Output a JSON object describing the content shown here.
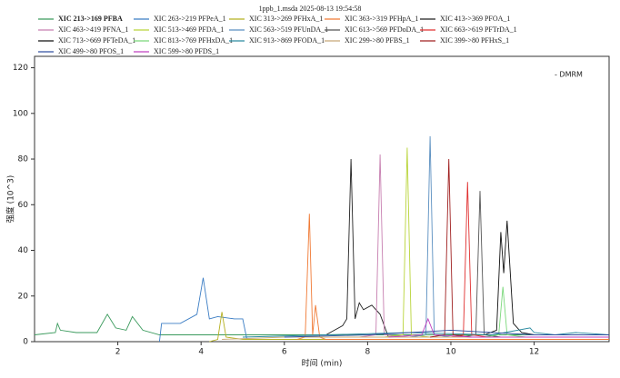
{
  "chart_data": {
    "type": "line",
    "title": "1ppb_1.msda 2025-08-13 19:54:58",
    "annotation": "- DMRM",
    "x_label": "时间 (min)",
    "y_label": "强度 (10^3)",
    "xlim": [
      0,
      13.8
    ],
    "ylim": [
      0,
      125
    ],
    "xticks": [
      2,
      4,
      6,
      8,
      10,
      12
    ],
    "yticks": [
      0,
      20,
      40,
      60,
      80,
      100,
      120
    ],
    "series": [
      {
        "name": "XIC 213->169 PFBA",
        "color": "#3a9a5c",
        "x": [
          0,
          0.5,
          0.55,
          0.62,
          1.0,
          1.5,
          1.75,
          1.95,
          2.2,
          2.35,
          2.6,
          3.0,
          4,
          6,
          8,
          10,
          12,
          13.8
        ],
        "values": [
          3,
          4,
          8,
          5,
          4,
          4,
          12,
          6,
          5,
          11,
          5,
          3,
          3,
          3,
          3,
          3,
          3,
          3
        ]
      },
      {
        "name": "XIC 263->219 PFPeA_1",
        "color": "#3b7dc4",
        "x": [
          3.0,
          3.05,
          3.5,
          3.9,
          4.05,
          4.2,
          4.4,
          4.8,
          5.0,
          5.1,
          6,
          13.8
        ],
        "values": [
          0,
          8,
          8,
          12,
          28,
          10,
          11,
          10,
          10,
          1,
          1,
          1
        ]
      },
      {
        "name": "XIC 313->269 PFHxA_1",
        "color": "#b5b020",
        "x": [
          4.2,
          4.4,
          4.5,
          4.6,
          5,
          13.8
        ],
        "values": [
          0,
          1,
          13,
          2,
          1,
          1
        ]
      },
      {
        "name": "XIC 363->319 PFHpA_1",
        "color": "#f07a35",
        "x": [
          6.3,
          6.5,
          6.6,
          6.68,
          6.75,
          6.85,
          7,
          13.8
        ],
        "values": [
          1,
          2,
          56,
          3,
          16,
          2,
          1,
          1
        ]
      },
      {
        "name": "XIC 413->369 PFOA_1",
        "color": "#222222",
        "x": [
          7.0,
          7.4,
          7.5,
          7.6,
          7.7,
          7.8,
          7.9,
          8.1,
          8.3,
          8.5,
          13.8
        ],
        "values": [
          3,
          7,
          10,
          80,
          10,
          17,
          14,
          16,
          12,
          2,
          2
        ]
      },
      {
        "name": "XIC 463->419 PFNA_1",
        "color": "#c77fb0",
        "x": [
          7.8,
          8.2,
          8.3,
          8.4,
          9,
          13.8
        ],
        "values": [
          2,
          3,
          82,
          3,
          2,
          2
        ]
      },
      {
        "name": "XIC 513->469 PFDA_1",
        "color": "#b9d43a",
        "x": [
          8.4,
          8.85,
          8.95,
          9.05,
          9.5,
          13.8
        ],
        "values": [
          2,
          3,
          85,
          3,
          2,
          2
        ]
      },
      {
        "name": "XIC 563->519 PFUnDA_1",
        "color": "#5a8fc0",
        "x": [
          9.0,
          9.4,
          9.5,
          9.6,
          10,
          13.8
        ],
        "values": [
          2,
          3,
          90,
          3,
          2,
          2
        ]
      },
      {
        "name": "XIC 613->569 PFDoDA_1",
        "color": "#555555",
        "x": [
          10.2,
          10.6,
          10.7,
          10.8,
          11.2,
          13.8
        ],
        "values": [
          2,
          3,
          66,
          3,
          2,
          2
        ]
      },
      {
        "name": "XIC 663->619 PFTrDA_1",
        "color": "#e03030",
        "x": [
          10.0,
          10.3,
          10.4,
          10.5,
          10.9,
          13.8
        ],
        "values": [
          2,
          3,
          70,
          3,
          2,
          2
        ]
      },
      {
        "name": "XIC 713->669 PFTeDA_1",
        "color": "#111111",
        "x": [
          10.8,
          11.1,
          11.2,
          11.27,
          11.35,
          11.5,
          11.7,
          12,
          13.8
        ],
        "values": [
          3,
          5,
          48,
          30,
          53,
          8,
          4,
          3,
          3
        ]
      },
      {
        "name": "XIC 813->769 PFHxDA_1",
        "color": "#7bd87b",
        "x": [
          10.8,
          11.15,
          11.25,
          11.35,
          11.8,
          13.8
        ],
        "values": [
          2,
          3,
          24,
          3,
          2,
          2
        ]
      },
      {
        "name": "XIC 913->869 PFODA_1",
        "color": "#2a8aa0",
        "x": [
          5,
          7,
          9,
          11,
          11.9,
          12,
          12.5,
          13,
          13.8
        ],
        "values": [
          2,
          3,
          4,
          3,
          6,
          4,
          3,
          4,
          3
        ]
      },
      {
        "name": "XIC 299->80 PFBS_1",
        "color": "#c8a878",
        "x": [
          4.5,
          6,
          8,
          10,
          12,
          13.8
        ],
        "values": [
          1,
          2,
          2,
          2,
          2,
          2
        ]
      },
      {
        "name": "XIC 399->80 PFHxS_1",
        "color": "#a02020",
        "x": [
          9.5,
          9.85,
          9.95,
          10.05,
          10.5,
          13.8
        ],
        "values": [
          2,
          3,
          80,
          3,
          2,
          2
        ]
      },
      {
        "name": "XIC 499->80 PFOS_1",
        "color": "#3050a0",
        "x": [
          6,
          8,
          9,
          10,
          11,
          12,
          13.8
        ],
        "values": [
          2,
          3,
          4,
          5,
          4,
          3,
          3
        ]
      },
      {
        "name": "XIC 599->80 PFDS_1",
        "color": "#c040c0",
        "x": [
          8.5,
          9.3,
          9.45,
          9.6,
          10.5,
          13.8
        ],
        "values": [
          2,
          3,
          10,
          3,
          2,
          2
        ]
      }
    ]
  }
}
